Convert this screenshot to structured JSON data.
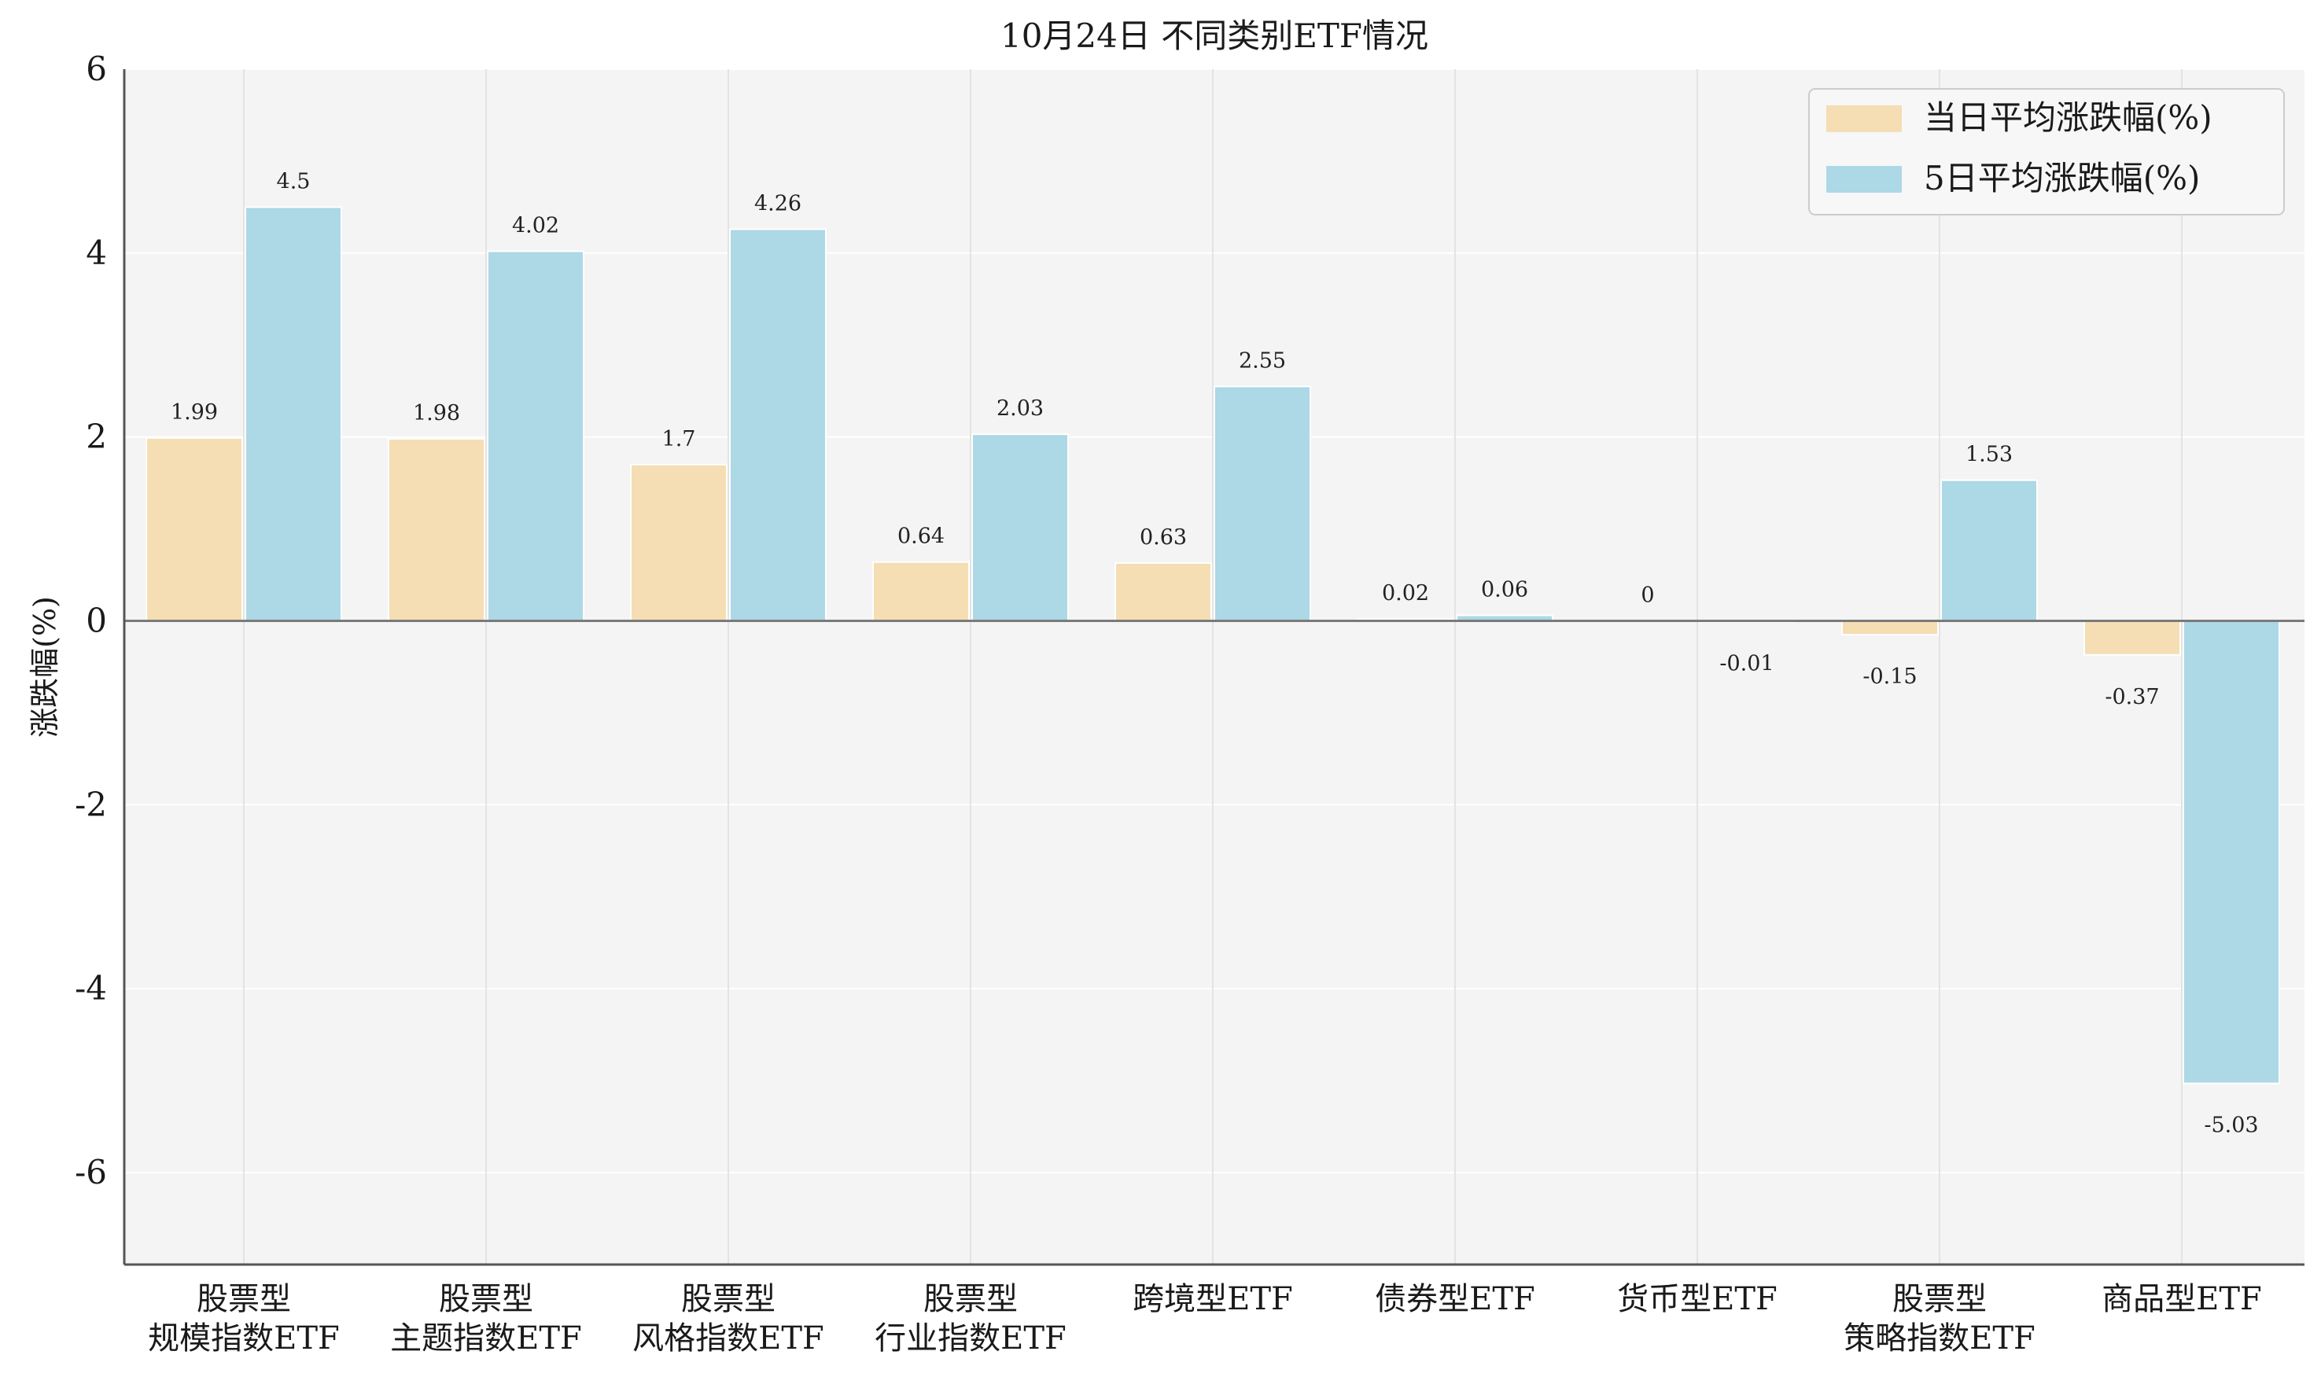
{
  "chart_data": {
    "type": "bar",
    "title": "10月24日 不同类别ETF情况",
    "xlabel": "",
    "ylabel": "涨跌幅(%)",
    "ylim": [
      -7,
      6
    ],
    "yticks": [
      -6,
      -4,
      -2,
      0,
      2,
      4,
      6
    ],
    "grid": true,
    "legend_position": "top-right",
    "categories": [
      [
        "股票型",
        "规模指数ETF"
      ],
      [
        "股票型",
        "主题指数ETF"
      ],
      [
        "股票型",
        "风格指数ETF"
      ],
      [
        "股票型",
        "行业指数ETF"
      ],
      [
        "跨境型ETF"
      ],
      [
        "债券型ETF"
      ],
      [
        "货币型ETF"
      ],
      [
        "股票型",
        "策略指数ETF"
      ],
      [
        "商品型ETF"
      ]
    ],
    "series": [
      {
        "name": "当日平均涨跌幅(%)",
        "color": "#f5deb3",
        "values": [
          1.99,
          1.98,
          1.7,
          0.64,
          0.63,
          0.02,
          0.0,
          -0.15,
          -0.37
        ]
      },
      {
        "name": "5日平均涨跌幅(%)",
        "color": "#add8e6",
        "values": [
          4.5,
          4.02,
          4.26,
          2.03,
          2.55,
          0.06,
          -0.01,
          1.53,
          -5.03
        ]
      }
    ]
  }
}
